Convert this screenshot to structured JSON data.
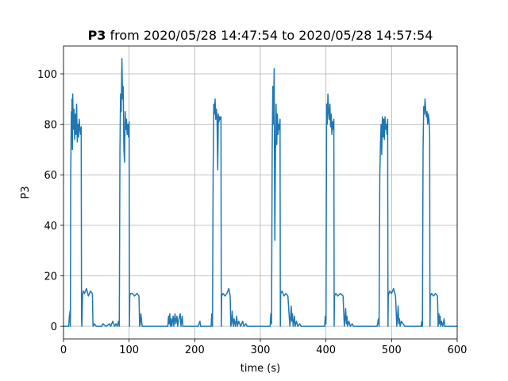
{
  "chart_data": {
    "type": "line",
    "title_bold": "P3",
    "title_rest": " from 2020/05/28 14:47:54 to 2020/05/28 14:57:54",
    "xlabel": "time (s)",
    "ylabel": "P3",
    "xlim": [
      0,
      600
    ],
    "ylim": [
      -5,
      111
    ],
    "xticks": [
      0,
      100,
      200,
      300,
      400,
      500,
      600
    ],
    "yticks": [
      0,
      20,
      40,
      60,
      80,
      100
    ],
    "grid": true,
    "series": [
      {
        "color": "#1f77b4",
        "points": [
          [
            0,
            0
          ],
          [
            8,
            0
          ],
          [
            9,
            4
          ],
          [
            10,
            6
          ],
          [
            10.5,
            0
          ],
          [
            11,
            60
          ],
          [
            12,
            85
          ],
          [
            12.5,
            75
          ],
          [
            13,
            90
          ],
          [
            13.5,
            70
          ],
          [
            14,
            92
          ],
          [
            15,
            78
          ],
          [
            16,
            86
          ],
          [
            17,
            74
          ],
          [
            18,
            84
          ],
          [
            19,
            76
          ],
          [
            20,
            88
          ],
          [
            21,
            73
          ],
          [
            22,
            80
          ],
          [
            23,
            75
          ],
          [
            24,
            82
          ],
          [
            25,
            78
          ],
          [
            26,
            76
          ],
          [
            27,
            79
          ],
          [
            27.5,
            3
          ],
          [
            28,
            0
          ],
          [
            29,
            12
          ],
          [
            30,
            14
          ],
          [
            32,
            13
          ],
          [
            35,
            15
          ],
          [
            38,
            12
          ],
          [
            41,
            14
          ],
          [
            44,
            13
          ],
          [
            45,
            0
          ],
          [
            47,
            1
          ],
          [
            50,
            0
          ],
          [
            55,
            0
          ],
          [
            58,
            0
          ],
          [
            60,
            1
          ],
          [
            65,
            0
          ],
          [
            70,
            1
          ],
          [
            72,
            0
          ],
          [
            75,
            2
          ],
          [
            78,
            0
          ],
          [
            80,
            1
          ],
          [
            82,
            0
          ],
          [
            84,
            2
          ],
          [
            85,
            0
          ],
          [
            86,
            70
          ],
          [
            87,
            92
          ],
          [
            88,
            85
          ],
          [
            89,
            106
          ],
          [
            90,
            90
          ],
          [
            91,
            95
          ],
          [
            92,
            70
          ],
          [
            93,
            65
          ],
          [
            94,
            85
          ],
          [
            95,
            78
          ],
          [
            96,
            82
          ],
          [
            97,
            76
          ],
          [
            98,
            80
          ],
          [
            99,
            75
          ],
          [
            100,
            81
          ],
          [
            100.5,
            0
          ],
          [
            101,
            12
          ],
          [
            102,
            13
          ],
          [
            105,
            13
          ],
          [
            108,
            12
          ],
          [
            112,
            13
          ],
          [
            115,
            12
          ],
          [
            116,
            0
          ],
          [
            117,
            1
          ],
          [
            118,
            5
          ],
          [
            119,
            2
          ],
          [
            120,
            0
          ],
          [
            125,
            0
          ],
          [
            130,
            0
          ],
          [
            140,
            0
          ],
          [
            150,
            0
          ],
          [
            159,
            0
          ],
          [
            160,
            4
          ],
          [
            161,
            1
          ],
          [
            162,
            5
          ],
          [
            163,
            0
          ],
          [
            164,
            3
          ],
          [
            165,
            0
          ],
          [
            167,
            4
          ],
          [
            168,
            0
          ],
          [
            170,
            5
          ],
          [
            171,
            1
          ],
          [
            173,
            4
          ],
          [
            174,
            0
          ],
          [
            176,
            3
          ],
          [
            178,
            5
          ],
          [
            179,
            0
          ],
          [
            181,
            4
          ],
          [
            182,
            0
          ],
          [
            185,
            0
          ],
          [
            190,
            0
          ],
          [
            195,
            0
          ],
          [
            200,
            0
          ],
          [
            205,
            0
          ],
          [
            208,
            2
          ],
          [
            209,
            0
          ],
          [
            215,
            0
          ],
          [
            220,
            0
          ],
          [
            225,
            0
          ],
          [
            226,
            5
          ],
          [
            227,
            0
          ],
          [
            228,
            60
          ],
          [
            229,
            88
          ],
          [
            230,
            84
          ],
          [
            231,
            90
          ],
          [
            232,
            82
          ],
          [
            233,
            86
          ],
          [
            234,
            83
          ],
          [
            235,
            62
          ],
          [
            236,
            84
          ],
          [
            237,
            81
          ],
          [
            238,
            83
          ],
          [
            239,
            82
          ],
          [
            240,
            83
          ],
          [
            240.5,
            0
          ],
          [
            241,
            12
          ],
          [
            243,
            13
          ],
          [
            246,
            12
          ],
          [
            249,
            13
          ],
          [
            252,
            15
          ],
          [
            254,
            12
          ],
          [
            255,
            0
          ],
          [
            256,
            1
          ],
          [
            257,
            6
          ],
          [
            258,
            2
          ],
          [
            259,
            0
          ],
          [
            260,
            3
          ],
          [
            262,
            0
          ],
          [
            264,
            4
          ],
          [
            265,
            0
          ],
          [
            267,
            2
          ],
          [
            270,
            0
          ],
          [
            273,
            2
          ],
          [
            275,
            0
          ],
          [
            278,
            1
          ],
          [
            280,
            0
          ],
          [
            290,
            0
          ],
          [
            300,
            0
          ],
          [
            310,
            0
          ],
          [
            315,
            0
          ],
          [
            316,
            5
          ],
          [
            317,
            1
          ],
          [
            318,
            70
          ],
          [
            319,
            95
          ],
          [
            320,
            80
          ],
          [
            321,
            102
          ],
          [
            322,
            34
          ],
          [
            323,
            65
          ],
          [
            324,
            88
          ],
          [
            325,
            72
          ],
          [
            326,
            84
          ],
          [
            327,
            76
          ],
          [
            328,
            80
          ],
          [
            329,
            78
          ],
          [
            330,
            82
          ],
          [
            330.5,
            0
          ],
          [
            331,
            13
          ],
          [
            333,
            14
          ],
          [
            336,
            12
          ],
          [
            339,
            13
          ],
          [
            342,
            12
          ],
          [
            345,
            0
          ],
          [
            346,
            3
          ],
          [
            347,
            8
          ],
          [
            348,
            2
          ],
          [
            349,
            5
          ],
          [
            350,
            0
          ],
          [
            352,
            4
          ],
          [
            353,
            0
          ],
          [
            355,
            2
          ],
          [
            357,
            0
          ],
          [
            360,
            1
          ],
          [
            362,
            0
          ],
          [
            370,
            0
          ],
          [
            380,
            0
          ],
          [
            390,
            0
          ],
          [
            398,
            0
          ],
          [
            399,
            4
          ],
          [
            400,
            1
          ],
          [
            401,
            88
          ],
          [
            402,
            80
          ],
          [
            403,
            92
          ],
          [
            404,
            85
          ],
          [
            405,
            82
          ],
          [
            406,
            88
          ],
          [
            407,
            79
          ],
          [
            408,
            84
          ],
          [
            409,
            76
          ],
          [
            410,
            81
          ],
          [
            411,
            78
          ],
          [
            412,
            82
          ],
          [
            412.5,
            0
          ],
          [
            413,
            12
          ],
          [
            415,
            13
          ],
          [
            418,
            12
          ],
          [
            422,
            13
          ],
          [
            426,
            12
          ],
          [
            428,
            0
          ],
          [
            429,
            3
          ],
          [
            430,
            7
          ],
          [
            431,
            1
          ],
          [
            432,
            4
          ],
          [
            433,
            0
          ],
          [
            435,
            2
          ],
          [
            437,
            0
          ],
          [
            440,
            1
          ],
          [
            442,
            0
          ],
          [
            450,
            0
          ],
          [
            460,
            0
          ],
          [
            470,
            0
          ],
          [
            478,
            0
          ],
          [
            480,
            3
          ],
          [
            481,
            0
          ],
          [
            482,
            60
          ],
          [
            483,
            72
          ],
          [
            484,
            80
          ],
          [
            485,
            68
          ],
          [
            486,
            83
          ],
          [
            487,
            75
          ],
          [
            488,
            82
          ],
          [
            489,
            74
          ],
          [
            490,
            83
          ],
          [
            491,
            78
          ],
          [
            492,
            80
          ],
          [
            493,
            76
          ],
          [
            494,
            82
          ],
          [
            494.5,
            0
          ],
          [
            495,
            12
          ],
          [
            497,
            14
          ],
          [
            500,
            13
          ],
          [
            503,
            15
          ],
          [
            506,
            12
          ],
          [
            508,
            0
          ],
          [
            509,
            4
          ],
          [
            510,
            8
          ],
          [
            511,
            1
          ],
          [
            512,
            3
          ],
          [
            513,
            0
          ],
          [
            515,
            2
          ],
          [
            520,
            0
          ],
          [
            530,
            0
          ],
          [
            540,
            0
          ],
          [
            545,
            0
          ],
          [
            546,
            2
          ],
          [
            547,
            0
          ],
          [
            548,
            70
          ],
          [
            549,
            87
          ],
          [
            550,
            84
          ],
          [
            551,
            90
          ],
          [
            552,
            86
          ],
          [
            553,
            83
          ],
          [
            554,
            85
          ],
          [
            555,
            80
          ],
          [
            556,
            84
          ],
          [
            557,
            82
          ],
          [
            558,
            76
          ],
          [
            558.5,
            0
          ],
          [
            559,
            12
          ],
          [
            561,
            13
          ],
          [
            564,
            12
          ],
          [
            567,
            13
          ],
          [
            570,
            12
          ],
          [
            571,
            0
          ],
          [
            572,
            5
          ],
          [
            573,
            1
          ],
          [
            574,
            4
          ],
          [
            575,
            0
          ],
          [
            576,
            2
          ],
          [
            578,
            0
          ],
          [
            580,
            3
          ],
          [
            581,
            0
          ],
          [
            585,
            0
          ],
          [
            590,
            0
          ],
          [
            595,
            0
          ],
          [
            600,
            0
          ]
        ]
      }
    ]
  }
}
